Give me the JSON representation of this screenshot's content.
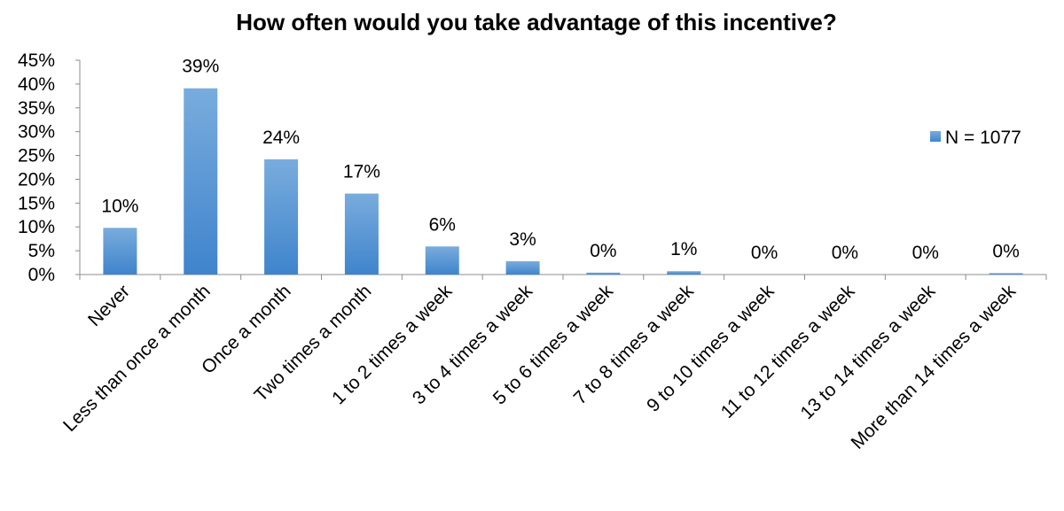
{
  "chart_data": {
    "type": "bar",
    "title": "How often would you take advantage of this incentive?",
    "xlabel": "",
    "ylabel": "",
    "categories": [
      "Never",
      "Less than once a month",
      "Once a month",
      "Two times a month",
      "1 to 2 times a week",
      "3 to 4 times a week",
      "5 to 6 times a week",
      "7 to 8 times a week",
      "9 to 10 times a week",
      "11 to 12 times a week",
      "13 to 14 times a week",
      "More than 14 times a week"
    ],
    "series": [
      {
        "name": "N = 1077",
        "values": [
          9.8,
          39.1,
          24.2,
          17.0,
          5.9,
          2.8,
          0.4,
          0.7,
          0.0,
          0.0,
          0.0,
          0.3
        ],
        "labels": [
          "10%",
          "39%",
          "24%",
          "17%",
          "6%",
          "3%",
          "0%",
          "1%",
          "0%",
          "0%",
          "0%",
          "0%"
        ],
        "color": "#5B9BD5"
      }
    ],
    "ylim": [
      0,
      45
    ],
    "yticks": [
      "0%",
      "5%",
      "10%",
      "15%",
      "20%",
      "25%",
      "30%",
      "35%",
      "40%",
      "45%"
    ],
    "grid": false,
    "legend": "right"
  }
}
